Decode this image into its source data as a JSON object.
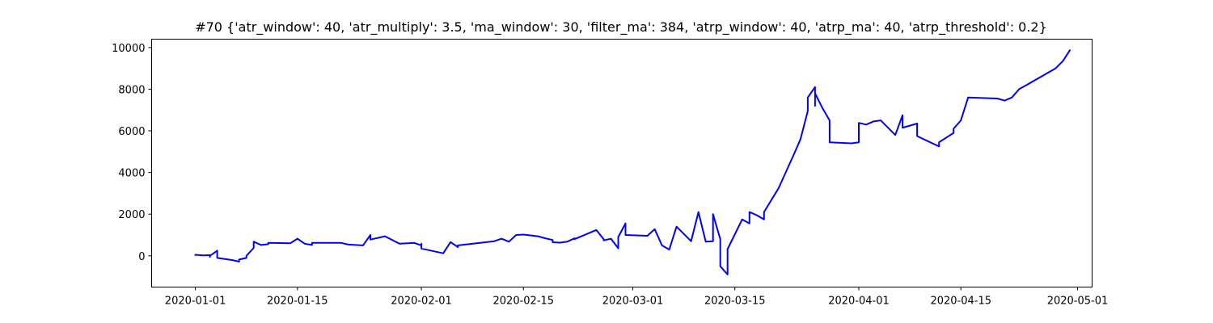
{
  "chart_data": {
    "type": "line",
    "title": "#70 {'atr_window': 40, 'atr_multiply': 3.5, 'ma_window': 30, 'filter_ma': 384, 'atrp_window': 40, 'atrp_ma': 40, 'atrp_threshold': 0.2}",
    "xlabel": "",
    "ylabel": "",
    "x_type": "date",
    "xlim": [
      "2019-12-26",
      "2020-05-03"
    ],
    "ylim": [
      -1500,
      10400
    ],
    "x_ticks": [
      "2020-01-01",
      "2020-01-15",
      "2020-02-01",
      "2020-02-15",
      "2020-03-01",
      "2020-03-15",
      "2020-04-01",
      "2020-04-15",
      "2020-05-01"
    ],
    "y_ticks": [
      0,
      2000,
      4000,
      6000,
      8000,
      10000
    ],
    "grid": false,
    "color": "#0000ff",
    "series": [
      {
        "points": [
          [
            "2020-01-01",
            0
          ],
          [
            "2020-01-01",
            50
          ],
          [
            "2020-01-02",
            20
          ],
          [
            "2020-01-03",
            30
          ],
          [
            "2020-01-03",
            -50
          ],
          [
            "2020-01-03",
            0
          ],
          [
            "2020-01-04",
            250
          ],
          [
            "2020-01-04",
            200
          ],
          [
            "2020-01-04",
            -100
          ],
          [
            "2020-01-06",
            -200
          ],
          [
            "2020-01-07",
            -280
          ],
          [
            "2020-01-07",
            -180
          ],
          [
            "2020-01-08",
            -100
          ],
          [
            "2020-01-08",
            0
          ],
          [
            "2020-01-09",
            380
          ],
          [
            "2020-01-09",
            680
          ],
          [
            "2020-01-10",
            520
          ],
          [
            "2020-01-11",
            560
          ],
          [
            "2020-01-11",
            620
          ],
          [
            "2020-01-14",
            600
          ],
          [
            "2020-01-15",
            820
          ],
          [
            "2020-01-16",
            580
          ],
          [
            "2020-01-17",
            520
          ],
          [
            "2020-01-17",
            620
          ],
          [
            "2020-01-21",
            620
          ],
          [
            "2020-01-22",
            540
          ],
          [
            "2020-01-24",
            500
          ],
          [
            "2020-01-25",
            1000
          ],
          [
            "2020-01-25",
            780
          ],
          [
            "2020-01-27",
            940
          ],
          [
            "2020-01-29",
            580
          ],
          [
            "2020-01-31",
            620
          ],
          [
            "2020-02-01",
            500
          ],
          [
            "2020-02-01",
            580
          ],
          [
            "2020-02-01",
            350
          ],
          [
            "2020-02-04",
            120
          ],
          [
            "2020-02-05",
            660
          ],
          [
            "2020-02-06",
            420
          ],
          [
            "2020-02-06",
            500
          ],
          [
            "2020-02-11",
            700
          ],
          [
            "2020-02-12",
            820
          ],
          [
            "2020-02-13",
            680
          ],
          [
            "2020-02-14",
            1000
          ],
          [
            "2020-02-15",
            1020
          ],
          [
            "2020-02-17",
            940
          ],
          [
            "2020-02-18",
            840
          ],
          [
            "2020-02-19",
            760
          ],
          [
            "2020-02-19",
            650
          ],
          [
            "2020-02-20",
            630
          ],
          [
            "2020-02-21",
            680
          ],
          [
            "2020-02-22",
            840
          ],
          [
            "2020-02-22",
            800
          ],
          [
            "2020-02-25",
            1240
          ],
          [
            "2020-02-26",
            800
          ],
          [
            "2020-02-26",
            740
          ],
          [
            "2020-02-27",
            820
          ],
          [
            "2020-02-28",
            360
          ],
          [
            "2020-02-28",
            840
          ],
          [
            "2020-02-28",
            860
          ],
          [
            "2020-02-28",
            900
          ],
          [
            "2020-02-29",
            1560
          ],
          [
            "2020-02-29",
            1000
          ],
          [
            "2020-03-03",
            960
          ],
          [
            "2020-03-04",
            1280
          ],
          [
            "2020-03-05",
            500
          ],
          [
            "2020-03-06",
            300
          ],
          [
            "2020-03-07",
            1400
          ],
          [
            "2020-03-09",
            700
          ],
          [
            "2020-03-10",
            2100
          ],
          [
            "2020-03-11",
            680
          ],
          [
            "2020-03-12",
            700
          ],
          [
            "2020-03-12",
            2000
          ],
          [
            "2020-03-13",
            800
          ],
          [
            "2020-03-13",
            -500
          ],
          [
            "2020-03-14",
            -900
          ],
          [
            "2020-03-14",
            320
          ],
          [
            "2020-03-16",
            1750
          ],
          [
            "2020-03-17",
            1550
          ],
          [
            "2020-03-17",
            2100
          ],
          [
            "2020-03-18",
            1950
          ],
          [
            "2020-03-19",
            1750
          ],
          [
            "2020-03-19",
            2100
          ],
          [
            "2020-03-21",
            3250
          ],
          [
            "2020-03-23",
            4800
          ],
          [
            "2020-03-24",
            5600
          ],
          [
            "2020-03-25",
            6950
          ],
          [
            "2020-03-25",
            7600
          ],
          [
            "2020-03-26",
            8100
          ],
          [
            "2020-03-26",
            7200
          ],
          [
            "2020-03-26",
            7800
          ],
          [
            "2020-03-27",
            7100
          ],
          [
            "2020-03-28",
            6500
          ],
          [
            "2020-03-28",
            5450
          ],
          [
            "2020-03-31",
            5400
          ],
          [
            "2020-04-01",
            5450
          ],
          [
            "2020-04-01",
            6380
          ],
          [
            "2020-04-02",
            6300
          ],
          [
            "2020-04-03",
            6450
          ],
          [
            "2020-04-04",
            6500
          ],
          [
            "2020-04-06",
            5800
          ],
          [
            "2020-04-07",
            6750
          ],
          [
            "2020-04-07",
            6150
          ],
          [
            "2020-04-08",
            6250
          ],
          [
            "2020-04-09",
            6350
          ],
          [
            "2020-04-09",
            5750
          ],
          [
            "2020-04-12",
            5250
          ],
          [
            "2020-04-12",
            5450
          ],
          [
            "2020-04-14",
            5900
          ],
          [
            "2020-04-14",
            6100
          ],
          [
            "2020-04-15",
            6500
          ],
          [
            "2020-04-16",
            7600
          ],
          [
            "2020-04-20",
            7550
          ],
          [
            "2020-04-21",
            7450
          ],
          [
            "2020-04-22",
            7600
          ],
          [
            "2020-04-23",
            8000
          ],
          [
            "2020-04-24",
            8200
          ],
          [
            "2020-04-28",
            9000
          ],
          [
            "2020-04-29",
            9350
          ],
          [
            "2020-04-30",
            9900
          ]
        ]
      }
    ]
  }
}
